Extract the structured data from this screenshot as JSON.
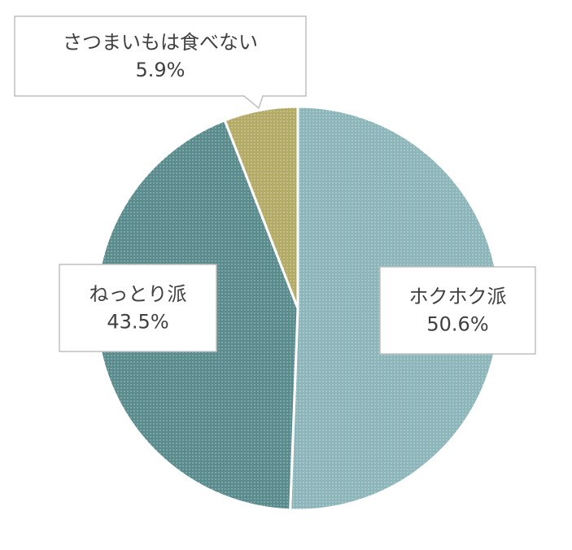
{
  "chart_data": {
    "type": "pie",
    "categories": [
      "ホクホク派",
      "ねっとり派",
      "さつまいもは食べない"
    ],
    "values": [
      50.6,
      43.5,
      5.9
    ],
    "value_labels": [
      "50.6%",
      "43.5%",
      "5.9%"
    ],
    "colors": [
      "#8db6ba",
      "#5a8c8e",
      "#b3aa66"
    ]
  }
}
